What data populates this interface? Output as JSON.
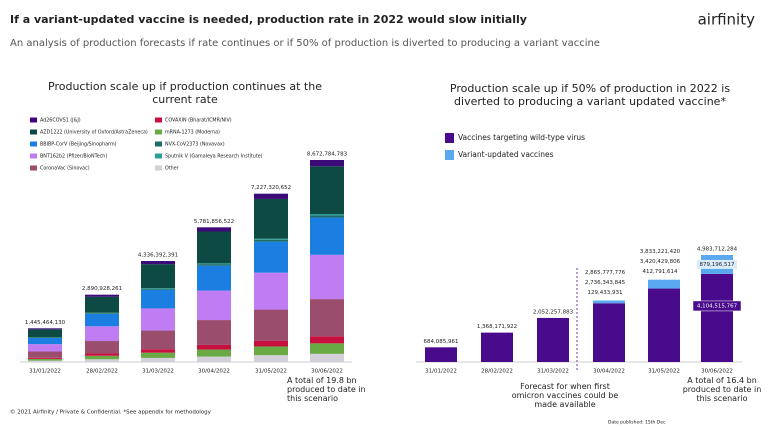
{
  "header": {
    "title": "If a variant-updated vaccine is needed, production rate in 2022 would slow initially",
    "subtitle": "An analysis of production forecasts if rate continues or if 50% of production is diverted to producing a variant vaccine",
    "logo": "airfinity"
  },
  "footer": {
    "copyright": "© 2021 Airfinity / Private & Confidential. *See appendix for methodology",
    "date": "Date published: 15th Dec"
  },
  "chart_data": [
    {
      "type": "bar",
      "stacked": true,
      "title": "Production scale up if production continues at the current rate",
      "categories": [
        "31/01/2022",
        "28/02/2022",
        "31/03/2022",
        "30/04/2022",
        "31/05/2022",
        "30/06/2022"
      ],
      "total_labels": [
        "1,445,464,130",
        "2,890,928,261",
        "4,336,392,391",
        "5,781,856,522",
        "7,227,320,652",
        "8,672,784,783"
      ],
      "annotation": "A total of 19.8 bn produced to date in this scenario",
      "series": [
        {
          "name": "Other",
          "color": "#d4d0da",
          "values": [
            58000000,
            117000000,
            175000000,
            233000000,
            292000000,
            350000000
          ]
        },
        {
          "name": "mRNA-1273 (Moderna)",
          "color": "#6aaa44",
          "values": [
            75000000,
            150000000,
            225000000,
            300000000,
            375000000,
            450000000
          ]
        },
        {
          "name": "COVAXIN (Bharat/ICMR/NIV)",
          "color": "#c8103f",
          "values": [
            50000000,
            100000000,
            150000000,
            200000000,
            250000000,
            300000000
          ]
        },
        {
          "name": "CoronaVac (Sinovac)",
          "color": "#9b4d6e",
          "values": [
            267000000,
            533000000,
            800000000,
            1067000000,
            1333000000,
            1600000000
          ]
        },
        {
          "name": "BNT162b2 (Pfizer/BioNTech)",
          "color": "#c07cf2",
          "values": [
            317000000,
            633000000,
            950000000,
            1267000000,
            1583000000,
            1900000000
          ]
        },
        {
          "name": "BBIBP-CorV (Beijing/Sinopharm)",
          "color": "#1a7fe0",
          "values": [
            267000000,
            533000000,
            800000000,
            1067000000,
            1333000000,
            1600000000
          ]
        },
        {
          "name": "NVX-CoV2373 (Novavax)",
          "color": "#1d6b6b",
          "values": [
            17000000,
            33000000,
            50000000,
            67000000,
            83000000,
            100000000
          ]
        },
        {
          "name": "Sputnik V (Gamaleya Research Institute)",
          "color": "#2aa198",
          "values": [
            8000000,
            17000000,
            25000000,
            33000000,
            42000000,
            50000000
          ]
        },
        {
          "name": "AZD1222 (University of Oxford/AstraZeneca)",
          "color": "#0d4a43",
          "values": [
            342000000,
            683000000,
            1025000000,
            1367000000,
            1708000000,
            2050000000
          ]
        },
        {
          "name": "Ad26COVS1 (J&J)",
          "color": "#3d0a7a",
          "values": [
            45000000,
            90000000,
            135000000,
            180000000,
            225000000,
            270000000
          ]
        }
      ]
    },
    {
      "type": "bar",
      "stacked": true,
      "title": "Production scale up if 50% of production in 2022 is diverted to producing a variant updated vaccine*",
      "categories": [
        "31/01/2022",
        "28/02/2022",
        "31/03/2022",
        "30/04/2022",
        "31/05/2022",
        "30/06/2022"
      ],
      "total_labels": [
        null,
        null,
        null,
        "2,865,777,776",
        "3,833,221,420",
        "4,983,712,284"
      ],
      "annotation": "A total of 16.4 bn produced to date in this scenario",
      "forecast_note": "Forecast for when first omicron vaccines could be made available",
      "series": [
        {
          "name": "Vaccines targeting wild-type virus",
          "color": "#4a0a8c",
          "values": [
            684085961,
            1368171922,
            2052257883,
            2736343845,
            3420429806,
            4104515767
          ],
          "value_labels": [
            "684,085,961",
            "1,368,171,922",
            "2,052,257,883",
            "2,736,343,845",
            "3,420,429,806",
            "4,104,515,767"
          ]
        },
        {
          "name": "Variant-updated vaccines",
          "color": "#5aa9f0",
          "values": [
            0,
            0,
            0,
            129433931,
            412791614,
            879196517
          ],
          "value_labels": [
            null,
            null,
            null,
            "129,433,931",
            "412,791,614",
            "879,196,517"
          ]
        }
      ]
    }
  ]
}
